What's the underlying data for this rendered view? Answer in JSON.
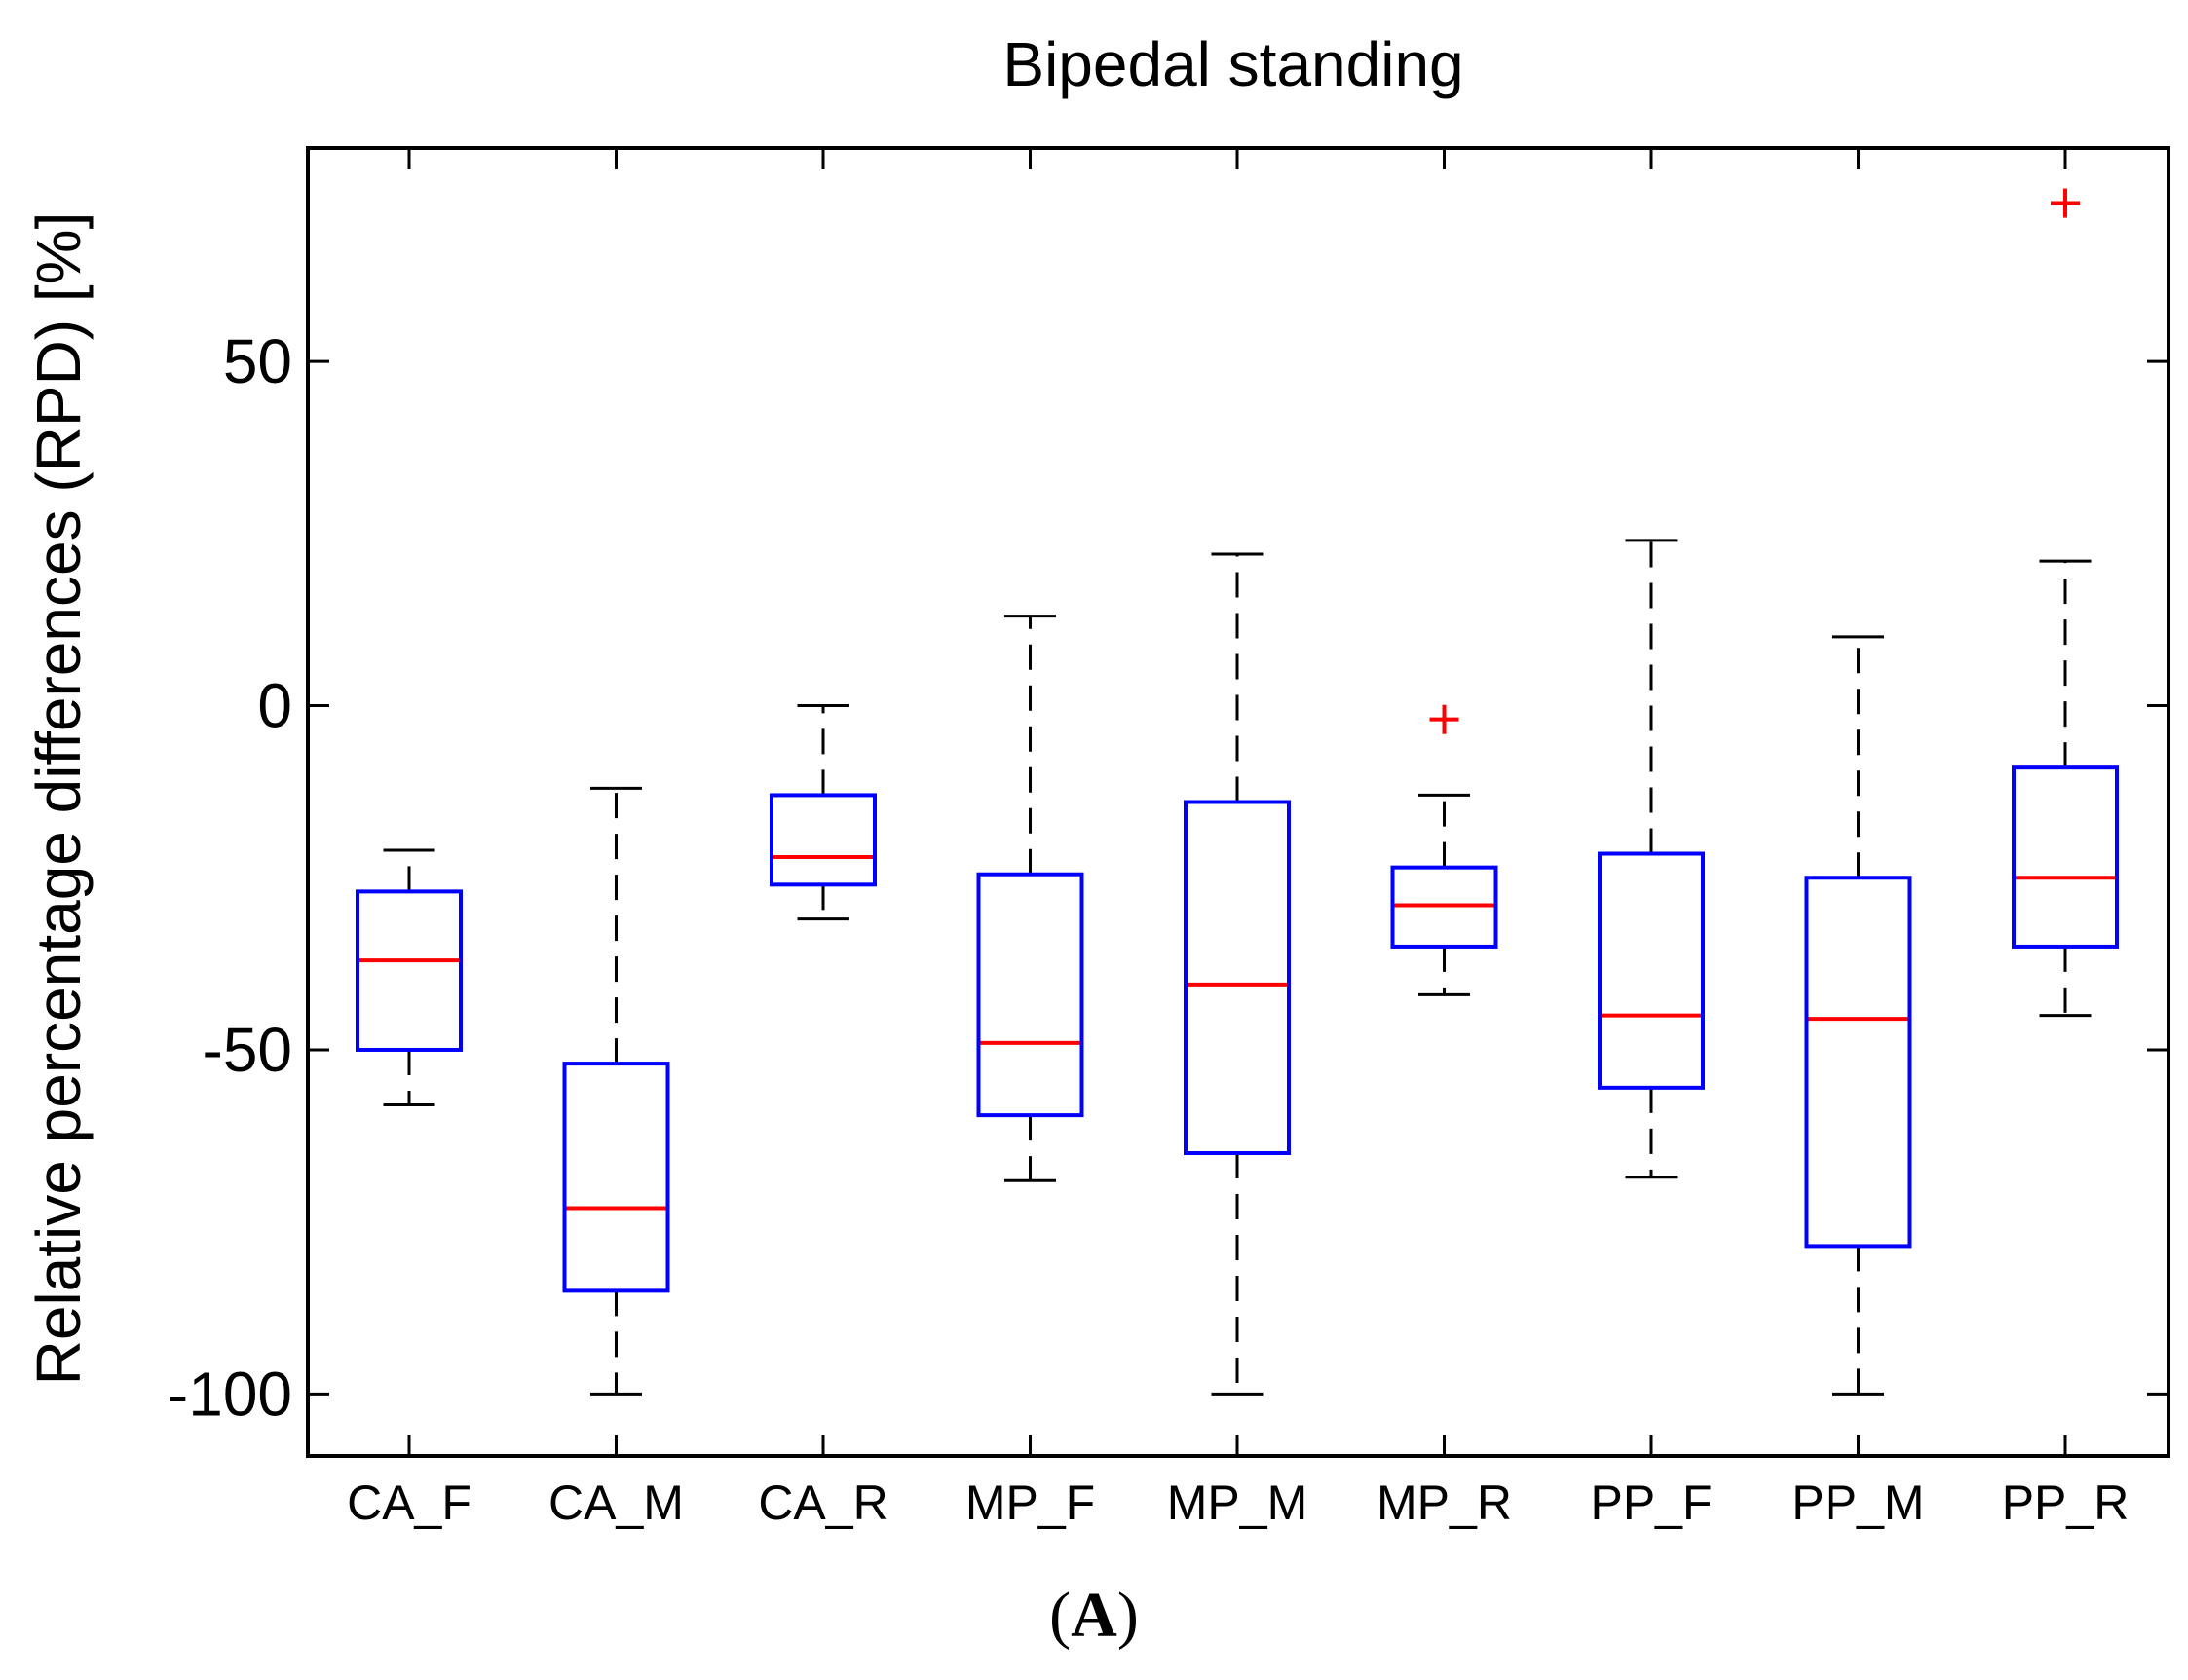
{
  "chart_data": {
    "type": "boxplot",
    "title": "Bipedal standing",
    "xlabel": "",
    "ylabel": "Relative percentage differences (RPD) [%]",
    "ylim": [
      -109,
      81
    ],
    "yticks": [
      50,
      0,
      -50,
      -100
    ],
    "ytick_labels": [
      "50",
      "0",
      "-50",
      "-100"
    ],
    "grid": false,
    "colors": {
      "box": "#0000ff",
      "median": "#ff0000",
      "whisker": "#000000",
      "outlier": "#ff0000",
      "axes": "#000000"
    },
    "categories": [
      "CA_F",
      "CA_M",
      "CA_R",
      "MP_F",
      "MP_M",
      "MP_R",
      "PP_F",
      "PP_M",
      "PP_R"
    ],
    "boxes": [
      {
        "label": "CA_F",
        "whisker_low": -58,
        "q1": -50,
        "median": -37,
        "q3": -27,
        "whisker_high": -21,
        "outliers": []
      },
      {
        "label": "CA_M",
        "whisker_low": -100,
        "q1": -85,
        "median": -73,
        "q3": -52,
        "whisker_high": -12,
        "outliers": []
      },
      {
        "label": "CA_R",
        "whisker_low": -31,
        "q1": -26,
        "median": -22,
        "q3": -13,
        "whisker_high": 0,
        "outliers": []
      },
      {
        "label": "MP_F",
        "whisker_low": -69,
        "q1": -59.5,
        "median": -49,
        "q3": -24.5,
        "whisker_high": 13,
        "outliers": []
      },
      {
        "label": "MP_M",
        "whisker_low": -100,
        "q1": -65,
        "median": -40.5,
        "q3": -14,
        "whisker_high": 22,
        "outliers": []
      },
      {
        "label": "MP_R",
        "whisker_low": -42,
        "q1": -35,
        "median": -29,
        "q3": -23.5,
        "whisker_high": -13,
        "outliers": [
          -2
        ]
      },
      {
        "label": "PP_F",
        "whisker_low": -68.5,
        "q1": -55.5,
        "median": -45,
        "q3": -21.5,
        "whisker_high": 24,
        "outliers": []
      },
      {
        "label": "PP_M",
        "whisker_low": -100,
        "q1": -78.5,
        "median": -45.5,
        "q3": -25,
        "whisker_high": 10,
        "outliers": []
      },
      {
        "label": "PP_R",
        "whisker_low": -45,
        "q1": -35,
        "median": -25,
        "q3": -9,
        "whisker_high": 21,
        "outliers": [
          73
        ]
      }
    ]
  },
  "caption": {
    "open": "(",
    "letter": "A",
    "close": ")"
  }
}
